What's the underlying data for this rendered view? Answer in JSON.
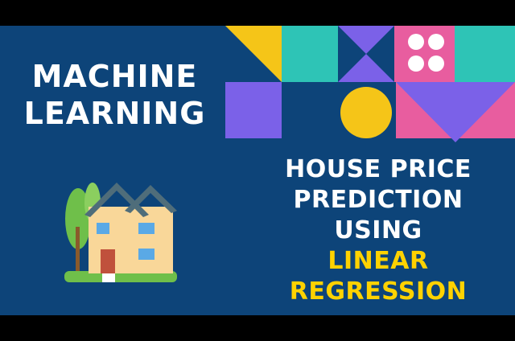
{
  "thumbnail": {
    "left_title_lines": [
      "MACHINE",
      "LEARNING"
    ],
    "right_title_lines": [
      "HOUSE PRICE",
      "PREDICTION",
      "USING"
    ],
    "highlight_lines": [
      "LINEAR",
      "REGRESSION"
    ]
  },
  "colors": {
    "background": "#0d4479",
    "letterbox": "#000000",
    "text": "#ffffff",
    "highlight": "#ffd200",
    "yellow": "#f5c518",
    "teal": "#2ec4b6",
    "purple": "#7b61e8",
    "pink": "#e85d9f"
  },
  "icons": [
    "geometric-pattern",
    "house-icon"
  ]
}
